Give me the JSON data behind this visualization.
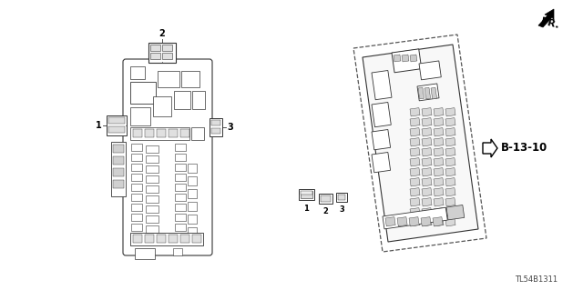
{
  "background_color": "#ffffff",
  "line_color": "#333333",
  "part_number": "TL54B1311",
  "label_B_13_10": "B-13-10",
  "fr_label": "FR.",
  "figsize": [
    6.4,
    3.19
  ],
  "dpi": 100,
  "xlim": [
    0,
    640
  ],
  "ylim": [
    0,
    319
  ]
}
